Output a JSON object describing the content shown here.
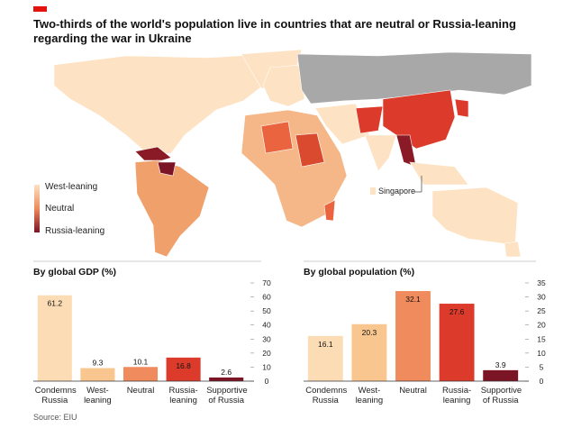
{
  "title": "Two-thirds of the world's population live in countries that are neutral or Russia-leaning regarding the war in Ukraine",
  "map": {
    "legend": [
      "West-leaning",
      "Neutral",
      "Russia-leaning"
    ],
    "annotation": "Singapore"
  },
  "chart_data": [
    {
      "type": "bar",
      "title": "By global GDP (%)",
      "categories": [
        "Condemns Russia",
        "West-leaning",
        "Neutral",
        "Russia-leaning",
        "Supportive of Russia"
      ],
      "values": [
        61.2,
        9.3,
        10.1,
        16.8,
        2.6
      ],
      "colors": [
        "#fcdcb5",
        "#f9c68f",
        "#f08b5e",
        "#dc3b2c",
        "#7b1424"
      ],
      "ylim": [
        0,
        70
      ],
      "yticks": [
        0,
        10,
        20,
        30,
        40,
        50,
        60,
        70
      ]
    },
    {
      "type": "bar",
      "title": "By global population (%)",
      "categories": [
        "Condemns Russia",
        "West-leaning",
        "Neutral",
        "Russia-leaning",
        "Supportive of Russia"
      ],
      "values": [
        16.1,
        20.3,
        32.1,
        27.6,
        3.9
      ],
      "colors": [
        "#fcdcb5",
        "#f9c68f",
        "#f08b5e",
        "#dc3b2c",
        "#7b1424"
      ],
      "ylim": [
        0,
        35
      ],
      "yticks": [
        0,
        5,
        10,
        15,
        20,
        25,
        30,
        35
      ]
    }
  ],
  "source": "Source: EIU"
}
